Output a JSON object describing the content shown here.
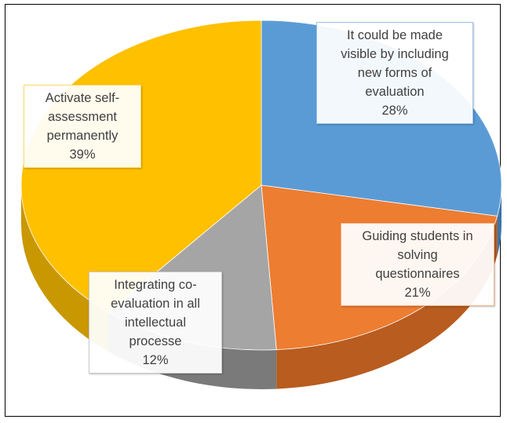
{
  "chart_data": {
    "type": "pie",
    "style": "3d",
    "title": "",
    "slices": [
      {
        "label": "It could be made visible by including new forms of evaluation",
        "value": 28,
        "display": "28%",
        "color": "#5B9BD5",
        "side": "#3E74A8",
        "border": "#9DC3E6"
      },
      {
        "label": "Guiding students in solving questionnaires",
        "value": 21,
        "display": "21%",
        "color": "#ED7D31",
        "side": "#B85C1F",
        "border": "#F4B183"
      },
      {
        "label": "Integrating co-evaluation in all intellectual processe",
        "value": 12,
        "display": "12%",
        "color": "#A5A5A5",
        "side": "#7A7A7A",
        "border": "#C9C9C9"
      },
      {
        "label": "Activate self-assessment permanently",
        "value": 39,
        "display": "39%",
        "color": "#FFC000",
        "side": "#C99700",
        "border": "#FFD966"
      }
    ],
    "label_lines": [
      [
        "It could be made",
        "visible by including",
        "new forms of",
        "evaluation"
      ],
      [
        "Guiding students in",
        "solving",
        "questionnaires"
      ],
      [
        "Integrating co-",
        "evaluation in all",
        "intellectual",
        "processe"
      ],
      [
        "Activate self-",
        "assessment",
        "permanently"
      ]
    ],
    "legend": "none"
  }
}
